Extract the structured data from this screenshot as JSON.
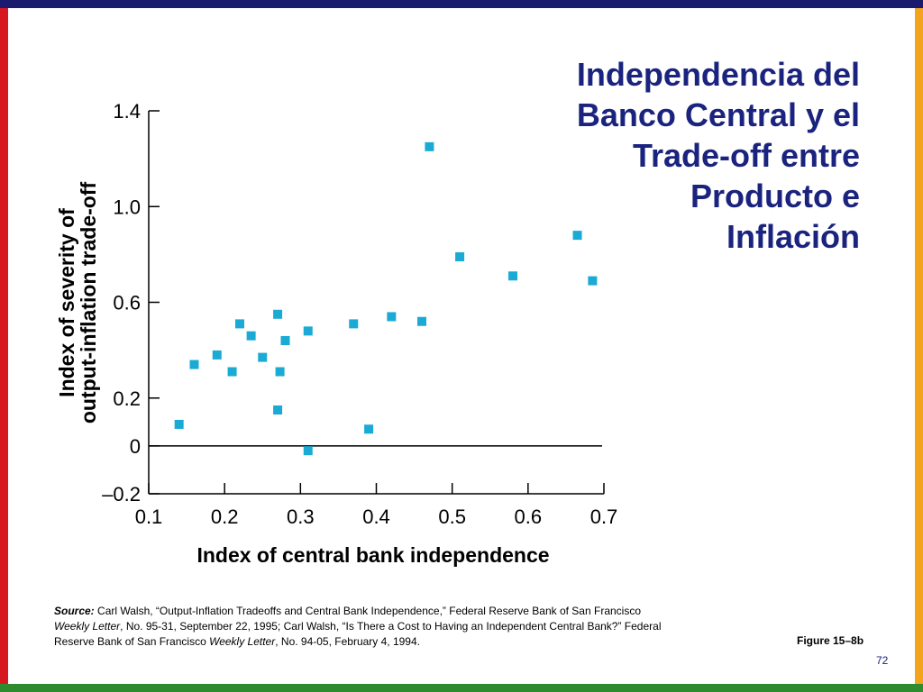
{
  "slide": {
    "title_lines": [
      "Independencia del",
      "Banco Central y el",
      "Trade-off entre",
      "Producto e",
      "Inflación"
    ],
    "source": {
      "label": "Source:",
      "text1": " Carl Walsh, “Output-Inflation Tradeoffs and Central Bank Independence,” Federal Reserve Bank of San Francisco ",
      "italic1": "Weekly Letter",
      "text2": ", No. 95-31, September 22, 1995; Carl Walsh, “Is There a Cost to Having an Independent Central Bank?” Federal Reserve Bank of San Francisco ",
      "italic2": "Weekly Letter",
      "text3": ", No. 94-05, February 4, 1994."
    },
    "figure_label": "Figure 15–8b",
    "page_number": "72"
  },
  "colors": {
    "top_bar": "#1a1a6e",
    "left_bar": "#d6191f",
    "right_bar": "#f2a41c",
    "bottom_bar": "#2e8b2e",
    "title": "#1a237e",
    "marker": "#1aaad4"
  },
  "chart_data": {
    "type": "scatter",
    "xlabel": "Index of central bank independence",
    "ylabel_lines": [
      "Index of severity of",
      "output-inflation trade-off"
    ],
    "xlim": [
      0.1,
      0.7
    ],
    "ylim": [
      -0.2,
      1.4
    ],
    "xticks": [
      0.1,
      0.2,
      0.3,
      0.4,
      0.5,
      0.6,
      0.7
    ],
    "xtick_labels": [
      "0.1",
      "0.2",
      "0.3",
      "0.4",
      "0.5",
      "0.6",
      "0.7"
    ],
    "yticks": [
      1.4,
      1.0,
      0.6,
      0.2,
      0,
      -0.2
    ],
    "ytick_labels": [
      "1.4",
      "1.0",
      "0.6",
      "0.2",
      "0",
      "–0.2"
    ],
    "zero_line": true,
    "grid": false,
    "points": [
      {
        "x": 0.14,
        "y": 0.09
      },
      {
        "x": 0.16,
        "y": 0.34
      },
      {
        "x": 0.19,
        "y": 0.38
      },
      {
        "x": 0.21,
        "y": 0.31
      },
      {
        "x": 0.22,
        "y": 0.51
      },
      {
        "x": 0.235,
        "y": 0.46
      },
      {
        "x": 0.25,
        "y": 0.37
      },
      {
        "x": 0.27,
        "y": 0.55
      },
      {
        "x": 0.27,
        "y": 0.15
      },
      {
        "x": 0.273,
        "y": 0.31
      },
      {
        "x": 0.28,
        "y": 0.44
      },
      {
        "x": 0.31,
        "y": 0.48
      },
      {
        "x": 0.31,
        "y": -0.02
      },
      {
        "x": 0.37,
        "y": 0.51
      },
      {
        "x": 0.39,
        "y": 0.07
      },
      {
        "x": 0.42,
        "y": 0.54
      },
      {
        "x": 0.46,
        "y": 0.52
      },
      {
        "x": 0.47,
        "y": 1.25
      },
      {
        "x": 0.51,
        "y": 0.79
      },
      {
        "x": 0.58,
        "y": 0.71
      },
      {
        "x": 0.665,
        "y": 0.88
      },
      {
        "x": 0.685,
        "y": 0.69
      }
    ]
  }
}
